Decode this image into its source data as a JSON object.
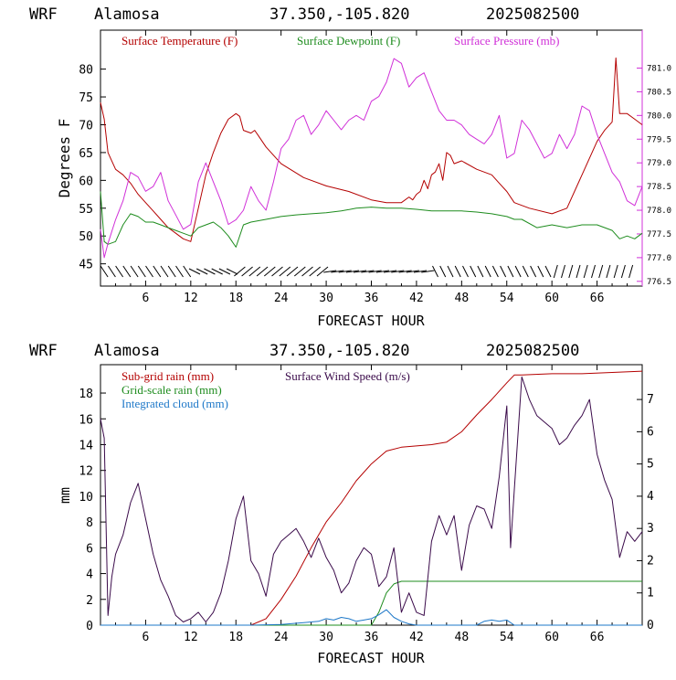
{
  "colors": {
    "temp": "#b40000",
    "dew": "#1e8c1e",
    "press": "#d030d8",
    "subrain": "#b40000",
    "gridrain": "#1e8c1e",
    "cloud": "#1e78c8",
    "wind": "#3a0a4a",
    "axis": "#000000",
    "paxis": "#d030d8"
  },
  "chart_data": [
    {
      "type": "line",
      "header": {
        "model": "WRF",
        "site": "Alamosa",
        "coords": "37.350,-105.820",
        "date": "2025082500"
      },
      "xlabel": "FORECAST HOUR",
      "ylabel": "Degrees F",
      "xlim": [
        0,
        72
      ],
      "ylim": [
        41,
        87
      ],
      "y2lim": [
        776.4,
        781.8
      ],
      "xticks": [
        6,
        12,
        18,
        24,
        30,
        36,
        42,
        48,
        54,
        60,
        66
      ],
      "xtick_labels": [
        "6",
        "12",
        "18",
        "24",
        "30",
        "36",
        "42",
        "48",
        "54",
        "60",
        "66"
      ],
      "yticks": [
        45,
        50,
        55,
        60,
        65,
        70,
        75,
        80
      ],
      "ytick_labels": [
        "45",
        "50",
        "55",
        "60",
        "65",
        "70",
        "75",
        "80"
      ],
      "y2ticks": [
        776.5,
        777.0,
        777.5,
        778.0,
        778.5,
        779.0,
        779.5,
        780.0,
        780.5,
        781.0
      ],
      "y2tick_labels": [
        "776.5",
        "777.0",
        "777.5",
        "778.0",
        "778.5",
        "779.0",
        "779.5",
        "780.0",
        "780.5",
        "781.0"
      ],
      "series": [
        {
          "name": "Surface Temperature (F)",
          "axis": "left",
          "color_key": "temp",
          "x": [
            0,
            0.5,
            1,
            2,
            3,
            4,
            5,
            6,
            7,
            8,
            9,
            10,
            11,
            12,
            13,
            14,
            15,
            16,
            17,
            18,
            18.5,
            19,
            20,
            20.5,
            21,
            22,
            24,
            27,
            30,
            33,
            36,
            38,
            40,
            41,
            41.5,
            42,
            42.5,
            43,
            43.5,
            44,
            44.5,
            45,
            45.5,
            46,
            46.5,
            47,
            48,
            50,
            52,
            53,
            54,
            55,
            57,
            60,
            62,
            64,
            66,
            67,
            68,
            68.5,
            69,
            70,
            71,
            72
          ],
          "values": [
            74,
            71,
            65,
            62,
            61,
            59.5,
            57.5,
            56,
            54.5,
            53,
            51.5,
            50.5,
            49.5,
            49,
            55,
            61,
            65,
            68.5,
            71,
            72,
            71.5,
            69,
            68.5,
            69,
            68,
            66,
            63,
            60.5,
            59,
            58,
            56.5,
            56,
            56,
            57,
            56.5,
            57.5,
            58,
            60,
            58.5,
            61,
            61.5,
            63,
            60,
            65,
            64.5,
            63,
            63.5,
            62,
            61,
            59.5,
            58,
            56,
            55,
            54,
            55,
            61,
            67,
            69,
            70.5,
            82,
            72,
            72,
            71,
            70
          ]
        },
        {
          "name": "Surface Dewpoint (F)",
          "axis": "left",
          "color_key": "dew",
          "x": [
            0,
            0.5,
            1,
            2,
            3,
            4,
            5,
            6,
            7,
            8,
            9,
            10,
            11,
            12,
            13,
            15,
            16,
            17,
            18,
            19,
            20,
            22,
            24,
            26,
            28,
            30,
            32,
            34,
            36,
            38,
            40,
            42,
            44,
            46,
            48,
            50,
            52,
            54,
            55,
            56,
            58,
            60,
            62,
            64,
            66,
            68,
            69,
            70,
            71,
            72
          ],
          "values": [
            58,
            49,
            48.5,
            49,
            52,
            54,
            53.5,
            52.5,
            52.5,
            52,
            51.5,
            51,
            50.5,
            50,
            51.5,
            52.5,
            51.5,
            50,
            48,
            52,
            52.5,
            53,
            53.5,
            53.8,
            54,
            54.2,
            54.5,
            55,
            55.2,
            55,
            55,
            54.8,
            54.5,
            54.5,
            54.5,
            54.3,
            54,
            53.5,
            53,
            53,
            51.5,
            52,
            51.5,
            52,
            52,
            51,
            49.5,
            50,
            49.5,
            50.5
          ]
        },
        {
          "name": "Surface Pressure (mb)",
          "axis": "right",
          "color_key": "press",
          "x": [
            0,
            0.5,
            1,
            2,
            3,
            4,
            5,
            6,
            7,
            8,
            9,
            10,
            11,
            12,
            13,
            14,
            15,
            16,
            17,
            18,
            19,
            20,
            21,
            22,
            23,
            24,
            25,
            26,
            27,
            28,
            29,
            30,
            31,
            32,
            33,
            34,
            35,
            36,
            37,
            38,
            39,
            40,
            41,
            42,
            43,
            44,
            45,
            46,
            47,
            48,
            49,
            50,
            51,
            52,
            53,
            54,
            55,
            56,
            57,
            58,
            59,
            60,
            61,
            62,
            63,
            64,
            65,
            66,
            67,
            68,
            69,
            70,
            71,
            72
          ],
          "values": [
            777.6,
            777.0,
            777.3,
            777.8,
            778.2,
            778.8,
            778.7,
            778.4,
            778.5,
            778.8,
            778.2,
            777.9,
            777.6,
            777.7,
            778.6,
            779.0,
            778.6,
            778.2,
            777.7,
            777.8,
            778.0,
            778.5,
            778.2,
            778.0,
            778.6,
            779.3,
            779.5,
            779.9,
            780.0,
            779.6,
            779.8,
            780.1,
            779.9,
            779.7,
            779.9,
            780.0,
            779.9,
            780.3,
            780.4,
            780.7,
            781.2,
            781.1,
            780.6,
            780.8,
            780.9,
            780.5,
            780.1,
            779.9,
            779.9,
            779.8,
            779.6,
            779.5,
            779.4,
            779.6,
            780.0,
            779.1,
            779.2,
            779.9,
            779.7,
            779.4,
            779.1,
            779.2,
            779.6,
            779.3,
            779.6,
            780.2,
            780.1,
            779.6,
            779.2,
            778.8,
            778.6,
            778.2,
            778.1,
            778.5
          ]
        }
      ],
      "annotations": "wind barbs along bottom of panel"
    },
    {
      "type": "line",
      "header": {
        "model": "WRF",
        "site": "Alamosa",
        "coords": "37.350,-105.820",
        "date": "2025082500"
      },
      "xlabel": "FORECAST HOUR",
      "ylabel": "mm",
      "xlim": [
        0,
        72
      ],
      "ylim": [
        0,
        20.2
      ],
      "y2lim": [
        0,
        8.08
      ],
      "xticks": [
        6,
        12,
        18,
        24,
        30,
        36,
        42,
        48,
        54,
        60,
        66
      ],
      "xtick_labels": [
        "6",
        "12",
        "18",
        "24",
        "30",
        "36",
        "42",
        "48",
        "54",
        "60",
        "66"
      ],
      "yticks": [
        0,
        2,
        4,
        6,
        8,
        10,
        12,
        14,
        16,
        18
      ],
      "ytick_labels": [
        "0",
        "2",
        "4",
        "6",
        "8",
        "10",
        "12",
        "14",
        "16",
        "18"
      ],
      "y2ticks": [
        0,
        1,
        2,
        3,
        4,
        5,
        6,
        7
      ],
      "y2tick_labels": [
        "0",
        "1",
        "2",
        "3",
        "4",
        "5",
        "6",
        "7"
      ],
      "series": [
        {
          "name": "Sub-grid rain (mm)",
          "axis": "left",
          "color_key": "subrain",
          "x": [
            0,
            20,
            22,
            24,
            26,
            28,
            30,
            32,
            34,
            36,
            38,
            40,
            42,
            44,
            46,
            48,
            50,
            52,
            54,
            55,
            56,
            60,
            64,
            68,
            72
          ],
          "values": [
            0,
            0,
            0.5,
            2,
            3.8,
            6,
            8,
            9.5,
            11.2,
            12.5,
            13.5,
            13.8,
            13.9,
            14,
            14.2,
            15,
            16.3,
            17.5,
            18.8,
            19.4,
            19.4,
            19.5,
            19.5,
            19.6,
            19.7
          ]
        },
        {
          "name": "Grid-scale rain (mm)",
          "axis": "left",
          "color_key": "gridrain",
          "x": [
            0,
            36,
            37,
            38,
            39,
            40,
            42,
            72
          ],
          "values": [
            0,
            0,
            1,
            2.5,
            3.2,
            3.4,
            3.4,
            3.4
          ]
        },
        {
          "name": "Integrated cloud (mm)",
          "axis": "left",
          "color_key": "cloud",
          "x": [
            0,
            20,
            24,
            27,
            29,
            30,
            31,
            32,
            33,
            34,
            35,
            36,
            37,
            38,
            39,
            40,
            41,
            42,
            50,
            51,
            52,
            53,
            54,
            55,
            72
          ],
          "values": [
            0,
            0,
            0.05,
            0.2,
            0.3,
            0.5,
            0.4,
            0.6,
            0.5,
            0.3,
            0.4,
            0.5,
            0.8,
            1.2,
            0.6,
            0.3,
            0.1,
            0,
            0,
            0.3,
            0.4,
            0.3,
            0.4,
            0,
            0
          ]
        },
        {
          "name": "Surface Wind Speed (m/s)",
          "axis": "right",
          "color_key": "wind",
          "x": [
            0,
            0.5,
            1,
            1.5,
            2,
            3,
            4,
            5,
            6,
            7,
            8,
            9,
            10,
            11,
            12,
            13,
            14,
            15,
            16,
            17,
            18,
            19,
            20,
            21,
            22,
            23,
            24,
            25,
            26,
            27,
            28,
            29,
            30,
            31,
            32,
            33,
            34,
            35,
            36,
            37,
            38,
            39,
            40,
            41,
            42,
            43,
            44,
            45,
            46,
            47,
            48,
            49,
            50,
            51,
            52,
            53,
            54,
            54.5,
            55,
            56,
            57,
            58,
            59,
            60,
            61,
            62,
            63,
            64,
            65,
            66,
            67,
            68,
            69,
            70,
            71,
            72
          ],
          "values": [
            6.4,
            5.8,
            0.3,
            1.5,
            2.2,
            2.8,
            3.8,
            4.4,
            3.3,
            2.2,
            1.4,
            0.9,
            0.3,
            0.1,
            0.2,
            0.4,
            0.1,
            0.4,
            1.0,
            2.0,
            3.3,
            4.0,
            2.0,
            1.6,
            0.9,
            2.2,
            2.6,
            2.8,
            3.0,
            2.6,
            2.1,
            2.7,
            2.1,
            1.7,
            1.0,
            1.3,
            2.0,
            2.4,
            2.2,
            1.2,
            1.5,
            2.4,
            0.4,
            1.0,
            0.4,
            0.3,
            2.6,
            3.4,
            2.8,
            3.4,
            1.7,
            3.1,
            3.7,
            3.6,
            3.0,
            4.6,
            6.8,
            2.4,
            4.2,
            7.7,
            7.0,
            6.5,
            6.3,
            6.1,
            5.6,
            5.8,
            6.2,
            6.5,
            7.0,
            5.3,
            4.5,
            3.9,
            2.1,
            2.9,
            2.6,
            2.9
          ]
        }
      ]
    }
  ]
}
